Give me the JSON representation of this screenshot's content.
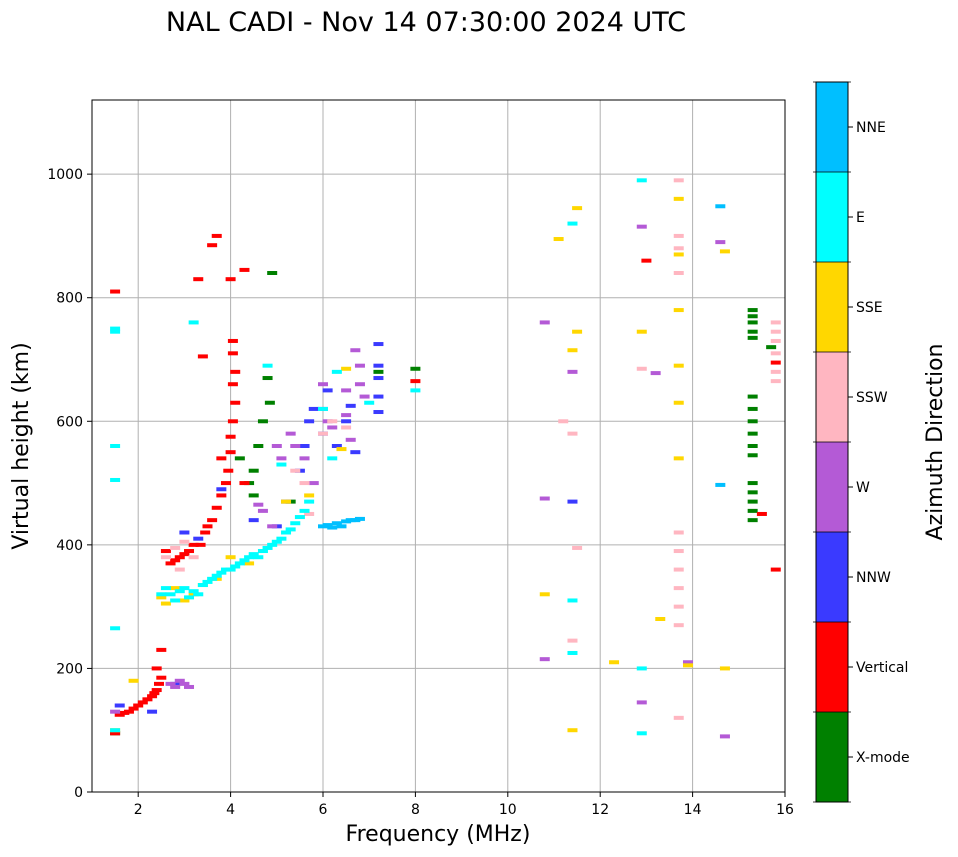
{
  "chart_data": {
    "type": "scatter",
    "title": "NAL CADI - Nov 14 07:30:00 2024 UTC",
    "xlabel": "Frequency (MHz)",
    "ylabel": "Virtual height (km)",
    "xlim": [
      1,
      16
    ],
    "ylim": [
      0,
      1120
    ],
    "xticks": [
      2,
      4,
      6,
      8,
      10,
      12,
      14,
      16
    ],
    "yticks": [
      0,
      200,
      400,
      600,
      800,
      1000
    ],
    "grid": true,
    "colorbar": {
      "label": "Azimuth Direction",
      "categories": [
        {
          "name": "X-mode",
          "color": "#008000"
        },
        {
          "name": "Vertical",
          "color": "#ff0000"
        },
        {
          "name": "NNW",
          "color": "#3a3aff"
        },
        {
          "name": "W",
          "color": "#b45ad6"
        },
        {
          "name": "SSW",
          "color": "#ffb6c1"
        },
        {
          "name": "SSE",
          "color": "#ffd700"
        },
        {
          "name": "E",
          "color": "#00ffff"
        },
        {
          "name": "NNE",
          "color": "#00bfff"
        }
      ]
    },
    "series": [
      {
        "name": "X-mode",
        "points": [
          [
            1.5,
            95
          ],
          [
            4.9,
            840
          ],
          [
            4.8,
            670
          ],
          [
            4.85,
            630
          ],
          [
            4.7,
            600
          ],
          [
            4.6,
            560
          ],
          [
            4.5,
            520
          ],
          [
            4.5,
            480
          ],
          [
            4.4,
            500
          ],
          [
            4.2,
            540
          ],
          [
            5.3,
            470
          ],
          [
            7.2,
            680
          ],
          [
            8.0,
            685
          ],
          [
            15.3,
            780
          ],
          [
            15.3,
            770
          ],
          [
            15.3,
            760
          ],
          [
            15.3,
            745
          ],
          [
            15.3,
            735
          ],
          [
            15.3,
            640
          ],
          [
            15.3,
            620
          ],
          [
            15.3,
            600
          ],
          [
            15.3,
            580
          ],
          [
            15.3,
            560
          ],
          [
            15.3,
            545
          ],
          [
            15.3,
            500
          ],
          [
            15.3,
            485
          ],
          [
            15.3,
            470
          ],
          [
            15.3,
            455
          ],
          [
            15.3,
            440
          ],
          [
            15.7,
            720
          ]
        ]
      },
      {
        "name": "Vertical",
        "points": [
          [
            1.5,
            810
          ],
          [
            3.3,
            830
          ],
          [
            3.7,
            900
          ],
          [
            3.6,
            885
          ],
          [
            4.0,
            830
          ],
          [
            4.3,
            845
          ],
          [
            3.4,
            705
          ],
          [
            4.05,
            730
          ],
          [
            4.05,
            710
          ],
          [
            4.1,
            680
          ],
          [
            4.05,
            660
          ],
          [
            4.1,
            630
          ],
          [
            4.05,
            600
          ],
          [
            4.0,
            575
          ],
          [
            4.0,
            550
          ],
          [
            3.95,
            520
          ],
          [
            3.9,
            500
          ],
          [
            3.8,
            480
          ],
          [
            3.7,
            460
          ],
          [
            3.6,
            440
          ],
          [
            3.5,
            430
          ],
          [
            3.45,
            420
          ],
          [
            3.35,
            400
          ],
          [
            3.2,
            400
          ],
          [
            3.1,
            390
          ],
          [
            3.0,
            385
          ],
          [
            2.9,
            380
          ],
          [
            2.8,
            375
          ],
          [
            2.7,
            370
          ],
          [
            2.6,
            390
          ],
          [
            2.5,
            230
          ],
          [
            2.4,
            200
          ],
          [
            2.5,
            185
          ],
          [
            2.45,
            175
          ],
          [
            2.4,
            165
          ],
          [
            2.35,
            160
          ],
          [
            2.3,
            155
          ],
          [
            2.2,
            150
          ],
          [
            2.1,
            145
          ],
          [
            2.0,
            140
          ],
          [
            1.9,
            135
          ],
          [
            1.8,
            130
          ],
          [
            1.7,
            128
          ],
          [
            1.6,
            125
          ],
          [
            1.5,
            95
          ],
          [
            4.3,
            500
          ],
          [
            3.8,
            540
          ],
          [
            8.0,
            665
          ],
          [
            13.0,
            860
          ],
          [
            15.5,
            450
          ],
          [
            15.8,
            695
          ],
          [
            15.8,
            360
          ]
        ]
      },
      {
        "name": "NNW",
        "points": [
          [
            1.6,
            140
          ],
          [
            2.3,
            130
          ],
          [
            2.8,
            175
          ],
          [
            3.0,
            420
          ],
          [
            3.3,
            410
          ],
          [
            3.8,
            490
          ],
          [
            4.5,
            440
          ],
          [
            5.0,
            430
          ],
          [
            5.2,
            470
          ],
          [
            5.5,
            520
          ],
          [
            5.6,
            560
          ],
          [
            5.7,
            600
          ],
          [
            5.8,
            620
          ],
          [
            6.0,
            580
          ],
          [
            6.1,
            650
          ],
          [
            6.3,
            560
          ],
          [
            6.5,
            600
          ],
          [
            6.6,
            625
          ],
          [
            6.7,
            550
          ],
          [
            7.2,
            725
          ],
          [
            7.2,
            690
          ],
          [
            7.2,
            670
          ],
          [
            7.2,
            640
          ],
          [
            7.2,
            615
          ],
          [
            11.4,
            470
          ]
        ]
      },
      {
        "name": "W",
        "points": [
          [
            2.7,
            175
          ],
          [
            2.8,
            170
          ],
          [
            2.9,
            180
          ],
          [
            3.0,
            175
          ],
          [
            3.1,
            170
          ],
          [
            1.5,
            130
          ],
          [
            4.6,
            465
          ],
          [
            4.7,
            455
          ],
          [
            4.9,
            430
          ],
          [
            5.0,
            560
          ],
          [
            5.1,
            540
          ],
          [
            5.3,
            580
          ],
          [
            5.4,
            560
          ],
          [
            5.6,
            540
          ],
          [
            5.8,
            500
          ],
          [
            6.0,
            660
          ],
          [
            6.0,
            620
          ],
          [
            6.1,
            600
          ],
          [
            6.2,
            590
          ],
          [
            6.5,
            650
          ],
          [
            6.5,
            610
          ],
          [
            6.6,
            570
          ],
          [
            6.7,
            715
          ],
          [
            6.8,
            690
          ],
          [
            6.8,
            660
          ],
          [
            6.9,
            640
          ],
          [
            10.8,
            760
          ],
          [
            10.8,
            475
          ],
          [
            10.8,
            215
          ],
          [
            11.4,
            680
          ],
          [
            12.9,
            915
          ],
          [
            12.9,
            145
          ],
          [
            13.2,
            678
          ],
          [
            13.9,
            210
          ],
          [
            14.6,
            890
          ],
          [
            14.7,
            90
          ]
        ]
      },
      {
        "name": "SSW",
        "points": [
          [
            2.6,
            380
          ],
          [
            2.8,
            395
          ],
          [
            3.0,
            405
          ],
          [
            2.9,
            360
          ],
          [
            3.2,
            380
          ],
          [
            5.4,
            520
          ],
          [
            5.6,
            500
          ],
          [
            5.7,
            450
          ],
          [
            6.0,
            580
          ],
          [
            6.2,
            600
          ],
          [
            6.5,
            590
          ],
          [
            11.2,
            600
          ],
          [
            11.4,
            580
          ],
          [
            11.5,
            395
          ],
          [
            11.4,
            245
          ],
          [
            12.9,
            685
          ],
          [
            13.7,
            990
          ],
          [
            13.7,
            900
          ],
          [
            13.7,
            880
          ],
          [
            13.7,
            840
          ],
          [
            13.7,
            420
          ],
          [
            13.7,
            390
          ],
          [
            13.7,
            360
          ],
          [
            13.7,
            330
          ],
          [
            13.7,
            300
          ],
          [
            13.7,
            270
          ],
          [
            13.7,
            120
          ],
          [
            15.8,
            760
          ],
          [
            15.8,
            745
          ],
          [
            15.8,
            730
          ],
          [
            15.8,
            710
          ],
          [
            15.8,
            680
          ],
          [
            15.8,
            665
          ]
        ]
      },
      {
        "name": "SSE",
        "points": [
          [
            1.5,
            100
          ],
          [
            1.9,
            180
          ],
          [
            2.5,
            315
          ],
          [
            2.6,
            305
          ],
          [
            2.8,
            330
          ],
          [
            3.0,
            310
          ],
          [
            3.2,
            320
          ],
          [
            3.4,
            335
          ],
          [
            3.7,
            345
          ],
          [
            4.0,
            380
          ],
          [
            4.4,
            370
          ],
          [
            5.2,
            470
          ],
          [
            5.7,
            480
          ],
          [
            6.4,
            555
          ],
          [
            6.5,
            685
          ],
          [
            10.8,
            320
          ],
          [
            11.1,
            895
          ],
          [
            11.5,
            945
          ],
          [
            11.5,
            745
          ],
          [
            11.4,
            715
          ],
          [
            11.4,
            100
          ],
          [
            12.3,
            210
          ],
          [
            12.9,
            745
          ],
          [
            13.3,
            280
          ],
          [
            13.7,
            960
          ],
          [
            13.7,
            870
          ],
          [
            13.7,
            780
          ],
          [
            13.7,
            690
          ],
          [
            13.7,
            630
          ],
          [
            13.7,
            540
          ],
          [
            13.9,
            205
          ],
          [
            14.7,
            875
          ],
          [
            14.7,
            200
          ]
        ]
      },
      {
        "name": "E",
        "points": [
          [
            1.5,
            750
          ],
          [
            1.5,
            745
          ],
          [
            1.5,
            560
          ],
          [
            1.5,
            505
          ],
          [
            1.5,
            265
          ],
          [
            1.5,
            100
          ],
          [
            3.2,
            760
          ],
          [
            2.5,
            320
          ],
          [
            2.6,
            330
          ],
          [
            2.7,
            320
          ],
          [
            2.8,
            310
          ],
          [
            2.9,
            325
          ],
          [
            3.0,
            330
          ],
          [
            3.1,
            315
          ],
          [
            3.2,
            325
          ],
          [
            3.3,
            320
          ],
          [
            3.4,
            335
          ],
          [
            3.5,
            340
          ],
          [
            3.6,
            345
          ],
          [
            3.7,
            350
          ],
          [
            3.8,
            355
          ],
          [
            3.9,
            360
          ],
          [
            4.0,
            360
          ],
          [
            4.1,
            365
          ],
          [
            4.2,
            370
          ],
          [
            4.3,
            375
          ],
          [
            4.4,
            380
          ],
          [
            4.5,
            385
          ],
          [
            4.6,
            380
          ],
          [
            4.7,
            390
          ],
          [
            4.8,
            395
          ],
          [
            4.9,
            400
          ],
          [
            5.0,
            405
          ],
          [
            5.1,
            410
          ],
          [
            5.2,
            420
          ],
          [
            5.3,
            425
          ],
          [
            5.4,
            435
          ],
          [
            5.5,
            445
          ],
          [
            5.6,
            455
          ],
          [
            5.7,
            470
          ],
          [
            4.8,
            690
          ],
          [
            5.1,
            530
          ],
          [
            6.0,
            620
          ],
          [
            6.3,
            680
          ],
          [
            6.2,
            540
          ],
          [
            8.0,
            650
          ],
          [
            7.0,
            630
          ],
          [
            11.4,
            920
          ],
          [
            11.4,
            310
          ],
          [
            11.4,
            225
          ],
          [
            12.9,
            990
          ],
          [
            12.9,
            200
          ],
          [
            12.9,
            95
          ]
        ]
      },
      {
        "name": "NNE",
        "points": [
          [
            6.0,
            430
          ],
          [
            6.1,
            432
          ],
          [
            6.2,
            428
          ],
          [
            6.3,
            435
          ],
          [
            6.4,
            430
          ],
          [
            6.5,
            438
          ],
          [
            6.6,
            440
          ],
          [
            6.7,
            440
          ],
          [
            6.8,
            442
          ],
          [
            14.6,
            948
          ],
          [
            14.6,
            497
          ]
        ]
      }
    ]
  }
}
